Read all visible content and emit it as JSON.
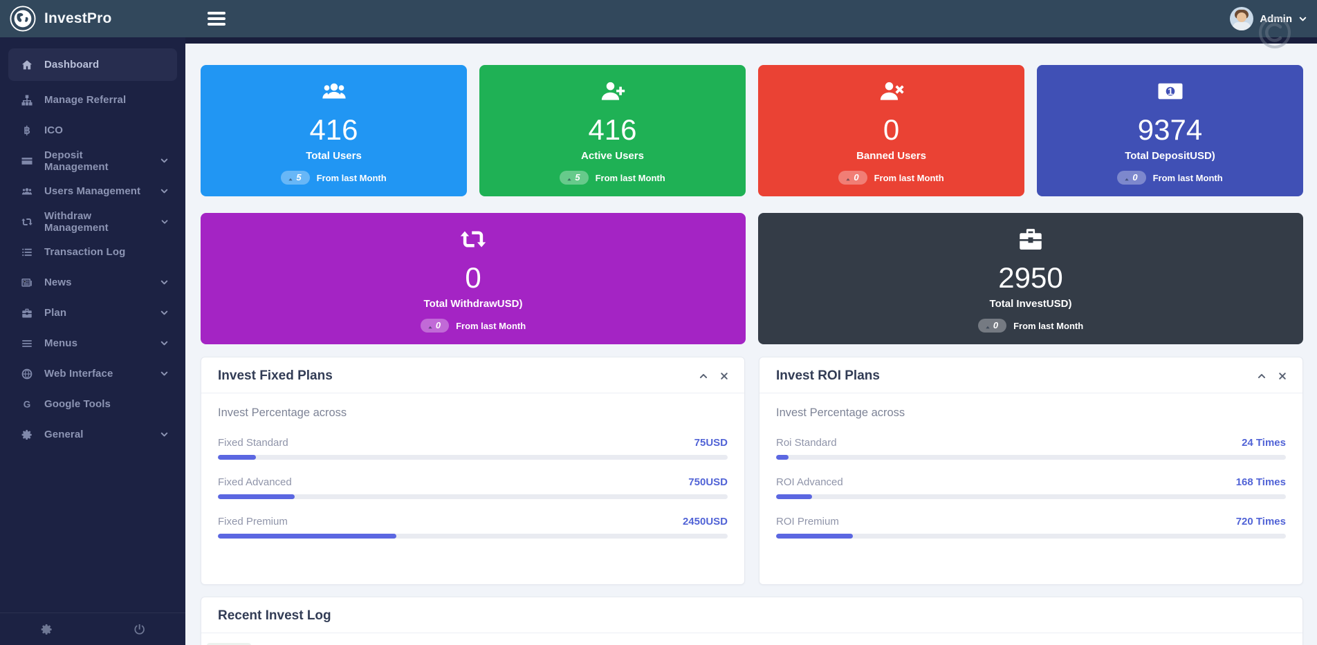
{
  "navbar": {
    "brand": "InvestPro",
    "brand_icon": "globe",
    "menu_icon": "hamburger",
    "admin_label": "Admin",
    "admin_caret_icon": "chevron-down"
  },
  "sidebar": {
    "items": [
      {
        "label": "Dashboard",
        "icon": "home",
        "active": true,
        "chevron": false
      },
      {
        "label": "Manage Referral",
        "icon": "sitemap",
        "active": false,
        "chevron": false
      },
      {
        "label": "ICO",
        "icon": "bitcoin",
        "active": false,
        "chevron": false
      },
      {
        "label": "Deposit Management",
        "icon": "credit-card",
        "active": false,
        "chevron": true
      },
      {
        "label": "Users Management",
        "icon": "users",
        "active": false,
        "chevron": true
      },
      {
        "label": "Withdraw Management",
        "icon": "exchange",
        "active": false,
        "chevron": true
      },
      {
        "label": "Transaction Log",
        "icon": "list",
        "active": false,
        "chevron": false
      },
      {
        "label": "News",
        "icon": "newspaper",
        "active": false,
        "chevron": true
      },
      {
        "label": "Plan",
        "icon": "briefcase",
        "active": false,
        "chevron": true
      },
      {
        "label": "Menus",
        "icon": "bars",
        "active": false,
        "chevron": true
      },
      {
        "label": "Web Interface",
        "icon": "globe",
        "active": false,
        "chevron": true
      },
      {
        "label": "Google Tools",
        "icon": "google",
        "active": false,
        "chevron": false
      },
      {
        "label": "General",
        "icon": "gear",
        "active": false,
        "chevron": true
      }
    ],
    "footer_icons": [
      "gear",
      "power"
    ]
  },
  "stat_cards": [
    {
      "value": "416",
      "label": "Total Users",
      "delta": "5",
      "note": "From last Month",
      "color": "#2196f3",
      "icon": "users-group",
      "wide": false
    },
    {
      "value": "416",
      "label": "Active Users",
      "delta": "5",
      "note": "From last Month",
      "color": "#1fb155",
      "icon": "user-plus",
      "wide": false
    },
    {
      "value": "0",
      "label": "Banned Users",
      "delta": "0",
      "note": "From last Month",
      "color": "#ea4234",
      "icon": "user-x",
      "wide": false
    },
    {
      "value": "9374",
      "label": "Total DepositUSD)",
      "delta": "0",
      "note": "From last Month",
      "color": "#4050b5",
      "icon": "money-bill",
      "wide": false
    },
    {
      "value": "0",
      "label": "Total WithdrawUSD)",
      "delta": "0",
      "note": "From last Month",
      "color": "#a424c4",
      "icon": "exchange",
      "wide": true
    },
    {
      "value": "2950",
      "label": "Total InvestUSD)",
      "delta": "0",
      "note": "From last Month",
      "color": "#343c47",
      "icon": "briefcase",
      "wide": true
    }
  ],
  "panels": [
    {
      "title": "Invest Fixed Plans",
      "subtitle": "Invest Percentage across",
      "controls": [
        "chevron-up",
        "close"
      ],
      "rows": [
        {
          "label": "Fixed Standard",
          "value": "75USD",
          "pct": 7.5
        },
        {
          "label": "Fixed Advanced",
          "value": "750USD",
          "pct": 15
        },
        {
          "label": "Fixed Premium",
          "value": "2450USD",
          "pct": 35
        }
      ]
    },
    {
      "title": "Invest ROI Plans",
      "subtitle": "Invest Percentage across",
      "controls": [
        "chevron-up",
        "close"
      ],
      "rows": [
        {
          "label": "Roi Standard",
          "value": "24 Times",
          "pct": 2.5
        },
        {
          "label": "ROI Advanced",
          "value": "168 Times",
          "pct": 7
        },
        {
          "label": "ROI Premium",
          "value": "720 Times",
          "pct": 15
        }
      ]
    }
  ],
  "recent_log": {
    "title": "Recent Invest Log"
  },
  "colors": {
    "navbar": "#32485c",
    "sidebar": "#1c2243",
    "main_bg": "#f1f4f9",
    "accent_progress": "#5b67e1",
    "progress_track": "#e9ebf1",
    "value_text": "#5163d6"
  }
}
